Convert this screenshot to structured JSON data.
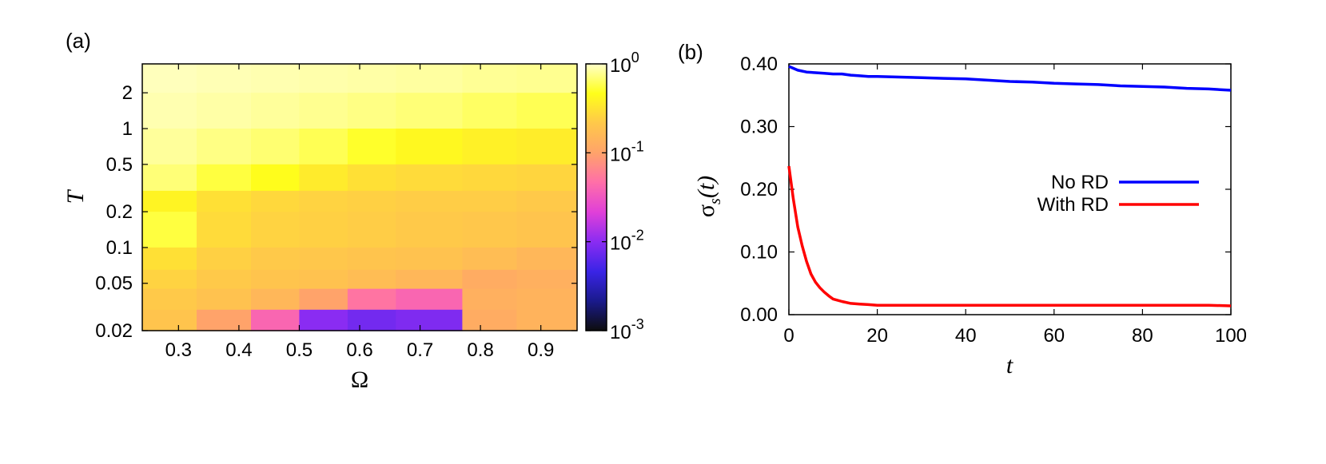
{
  "figure": {
    "panel_a_label": "(a)",
    "panel_b_label": "(b)"
  },
  "chart_data": [
    {
      "type": "heatmap",
      "panel": "(a)",
      "xlabel": "Ω",
      "ylabel": "T",
      "xlim": [
        0.24,
        0.96
      ],
      "ylim": [
        0.02,
        3.5
      ],
      "y_scale": "log",
      "x_ticks": [
        "0.3",
        "0.4",
        "0.5",
        "0.6",
        "0.7",
        "0.8",
        "0.9"
      ],
      "x_tick_values": [
        0.3,
        0.4,
        0.5,
        0.6,
        0.7,
        0.8,
        0.9
      ],
      "y_ticks": [
        "0.02",
        "0.05",
        "0.1",
        "0.2",
        "0.5",
        "1",
        "2"
      ],
      "y_tick_values": [
        0.02,
        0.05,
        0.1,
        0.2,
        0.5,
        1,
        2
      ],
      "colorbar": {
        "scale": "log",
        "range": [
          0.001,
          1
        ],
        "tick_mantissa": "10",
        "tick_exponents": [
          "0",
          "-1",
          "-2",
          "-3"
        ],
        "tick_values": [
          1,
          0.1,
          0.01,
          0.001
        ],
        "colors": [
          "#0d0d0d",
          "#1a1a8c",
          "#3a24e6",
          "#8a2cf2",
          "#e040d8",
          "#ff6fa8",
          "#ffa36a",
          "#ffc84a",
          "#ffff1a",
          "#ffffc8"
        ]
      },
      "rows": [
        {
          "T_range": [
            2.0,
            3.5
          ],
          "values": [
            0.95,
            0.92,
            0.9,
            0.88,
            0.86,
            0.84,
            0.8,
            0.78
          ]
        },
        {
          "T_range": [
            1.0,
            2.0
          ],
          "values": [
            0.9,
            0.86,
            0.82,
            0.78,
            0.74,
            0.7,
            0.64,
            0.6
          ]
        },
        {
          "T_range": [
            0.5,
            1.0
          ],
          "values": [
            0.82,
            0.74,
            0.68,
            0.6,
            0.5,
            0.42,
            0.38,
            0.36
          ]
        },
        {
          "T_range": [
            0.3,
            0.5
          ],
          "values": [
            0.7,
            0.55,
            0.45,
            0.35,
            0.3,
            0.28,
            0.27,
            0.26
          ]
        },
        {
          "T_range": [
            0.2,
            0.3
          ],
          "values": [
            0.4,
            0.3,
            0.27,
            0.25,
            0.24,
            0.23,
            0.23,
            0.22
          ]
        },
        {
          "T_range": [
            0.1,
            0.2
          ],
          "values": [
            0.55,
            0.28,
            0.25,
            0.24,
            0.23,
            0.22,
            0.21,
            0.2
          ]
        },
        {
          "T_range": [
            0.065,
            0.1
          ],
          "values": [
            0.3,
            0.24,
            0.22,
            0.21,
            0.2,
            0.19,
            0.17,
            0.15
          ]
        },
        {
          "T_range": [
            0.045,
            0.065
          ],
          "values": [
            0.25,
            0.22,
            0.2,
            0.19,
            0.17,
            0.15,
            0.12,
            0.13
          ]
        },
        {
          "T_range": [
            0.03,
            0.045
          ],
          "values": [
            0.22,
            0.19,
            0.15,
            0.1,
            0.05,
            0.04,
            0.13,
            0.14
          ]
        },
        {
          "T_range": [
            0.02,
            0.03
          ],
          "values": [
            0.2,
            0.1,
            0.04,
            0.01,
            0.008,
            0.009,
            0.12,
            0.14
          ]
        }
      ],
      "row_x_edges": [
        0.24,
        0.33,
        0.42,
        0.5,
        0.58,
        0.66,
        0.77,
        0.86,
        0.96
      ]
    },
    {
      "type": "line",
      "panel": "(b)",
      "xlabel": "t",
      "ylabel": "σ",
      "ylabel_sub": "s",
      "ylabel_arg": "(t)",
      "xlim": [
        0,
        100
      ],
      "ylim": [
        0,
        0.4
      ],
      "x_ticks": [
        "0",
        "20",
        "40",
        "60",
        "80",
        "100"
      ],
      "x_tick_values": [
        0,
        20,
        40,
        60,
        80,
        100
      ],
      "y_ticks": [
        "0.00",
        "0.10",
        "0.20",
        "0.30",
        "0.40"
      ],
      "y_tick_values": [
        0,
        0.1,
        0.2,
        0.3,
        0.4
      ],
      "legend_position": "right",
      "series": [
        {
          "name": "No RD",
          "color": "#0000ff",
          "x": [
            0,
            2,
            4,
            6,
            8,
            10,
            12,
            14,
            16,
            18,
            20,
            25,
            30,
            35,
            40,
            45,
            50,
            55,
            60,
            65,
            70,
            75,
            80,
            85,
            90,
            95,
            100
          ],
          "y": [
            0.396,
            0.39,
            0.387,
            0.386,
            0.385,
            0.384,
            0.384,
            0.382,
            0.381,
            0.38,
            0.38,
            0.379,
            0.378,
            0.377,
            0.376,
            0.374,
            0.372,
            0.371,
            0.369,
            0.368,
            0.367,
            0.365,
            0.364,
            0.363,
            0.361,
            0.36,
            0.358
          ]
        },
        {
          "name": "With RD",
          "color": "#ff0000",
          "x": [
            0,
            1,
            2,
            3,
            4,
            5,
            6,
            7,
            8,
            9,
            10,
            12,
            14,
            16,
            18,
            20,
            25,
            30,
            35,
            40,
            45,
            50,
            55,
            60,
            65,
            70,
            75,
            80,
            85,
            90,
            95,
            100
          ],
          "y": [
            0.237,
            0.185,
            0.14,
            0.11,
            0.085,
            0.065,
            0.052,
            0.043,
            0.036,
            0.03,
            0.025,
            0.021,
            0.018,
            0.017,
            0.016,
            0.015,
            0.015,
            0.015,
            0.015,
            0.015,
            0.015,
            0.015,
            0.015,
            0.015,
            0.015,
            0.015,
            0.015,
            0.015,
            0.015,
            0.015,
            0.015,
            0.014
          ]
        }
      ]
    }
  ]
}
